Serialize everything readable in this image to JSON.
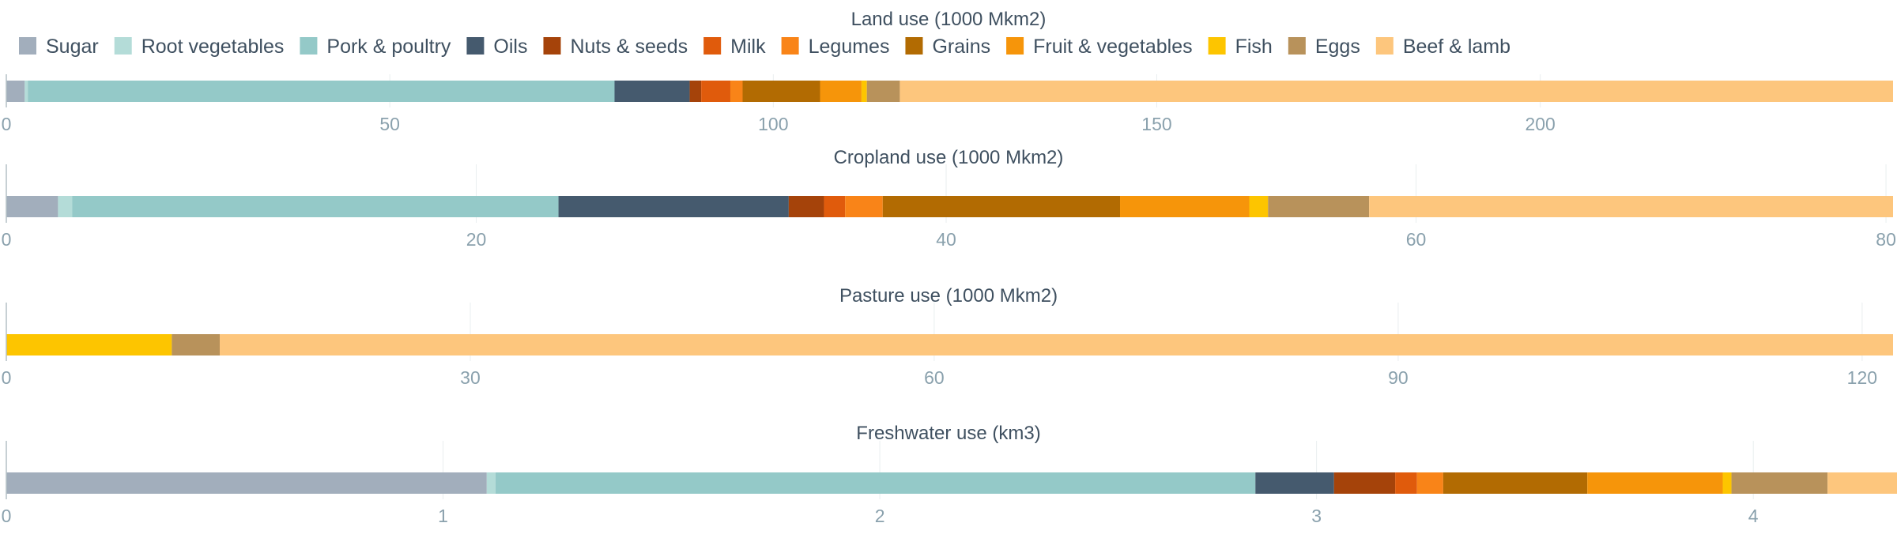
{
  "chart_data": {
    "type": "bar",
    "orientation": "horizontal-stacked",
    "legend_position": "top-left",
    "grid": true,
    "legend": [
      {
        "name": "Sugar",
        "color": "#a2aebc"
      },
      {
        "name": "Root vegetables",
        "color": "#b4dcd8"
      },
      {
        "name": "Pork & poultry",
        "color": "#94c9c8"
      },
      {
        "name": "Oils",
        "color": "#455a6e"
      },
      {
        "name": "Nuts & seeds",
        "color": "#a5430a"
      },
      {
        "name": "Milk",
        "color": "#e05b0c"
      },
      {
        "name": "Legumes",
        "color": "#f98418"
      },
      {
        "name": "Grains",
        "color": "#b26b02"
      },
      {
        "name": "Fruit & vegetables",
        "color": "#f6950a"
      },
      {
        "name": "Fish",
        "color": "#fdc500"
      },
      {
        "name": "Eggs",
        "color": "#b8925b"
      },
      {
        "name": "Beef & lamb",
        "color": "#fdc67d"
      }
    ],
    "panels": [
      {
        "title": "Land use (1000 Mkm2)",
        "xlim": [
          0,
          246
        ],
        "ticks": [
          0,
          50,
          100,
          150,
          200
        ],
        "segments": [
          {
            "name": "Sugar",
            "value": 2.4
          },
          {
            "name": "Root vegetables",
            "value": 0.4
          },
          {
            "name": "Pork & poultry",
            "value": 76.5
          },
          {
            "name": "Oils",
            "value": 9.8
          },
          {
            "name": "Nuts & seeds",
            "value": 1.5
          },
          {
            "name": "Milk",
            "value": 3.8
          },
          {
            "name": "Legumes",
            "value": 1.6
          },
          {
            "name": "Grains",
            "value": 10.1
          },
          {
            "name": "Fruit & vegetables",
            "value": 5.4
          },
          {
            "name": "Fish",
            "value": 0.7
          },
          {
            "name": "Eggs",
            "value": 4.3
          },
          {
            "name": "Beef & lamb",
            "value": 129.5
          }
        ]
      },
      {
        "title": "Cropland use (1000 Mkm2)",
        "xlim": [
          0,
          80.3
        ],
        "ticks": [
          0,
          20,
          40,
          60,
          80
        ],
        "segments": [
          {
            "name": "Sugar",
            "value": 2.2
          },
          {
            "name": "Root vegetables",
            "value": 0.6
          },
          {
            "name": "Pork & poultry",
            "value": 20.7
          },
          {
            "name": "Oils",
            "value": 9.8
          },
          {
            "name": "Nuts & seeds",
            "value": 1.5
          },
          {
            "name": "Milk",
            "value": 0.9
          },
          {
            "name": "Legumes",
            "value": 1.6
          },
          {
            "name": "Grains",
            "value": 10.1
          },
          {
            "name": "Fruit & vegetables",
            "value": 5.5
          },
          {
            "name": "Fish",
            "value": 0.8
          },
          {
            "name": "Eggs",
            "value": 4.3
          },
          {
            "name": "Beef & lamb",
            "value": 22.3
          }
        ]
      },
      {
        "title": "Pasture use (1000 Mkm2)",
        "xlim": [
          0,
          122
        ],
        "ticks": [
          0,
          30,
          60,
          90,
          120
        ],
        "segments": [
          {
            "name": "Fish",
            "value": 10.7
          },
          {
            "name": "Eggs",
            "value": 3.1
          },
          {
            "name": "Beef & lamb",
            "value": 108.2
          }
        ]
      },
      {
        "title": "Freshwater use (km3)",
        "xlim": [
          0,
          4.32
        ],
        "ticks": [
          0,
          1,
          2,
          3,
          4
        ],
        "segments": [
          {
            "name": "Sugar",
            "value": 1.1
          },
          {
            "name": "Root vegetables",
            "value": 0.02
          },
          {
            "name": "Pork & poultry",
            "value": 1.74
          },
          {
            "name": "Oils",
            "value": 0.18
          },
          {
            "name": "Nuts & seeds",
            "value": 0.14
          },
          {
            "name": "Milk",
            "value": 0.05
          },
          {
            "name": "Legumes",
            "value": 0.06
          },
          {
            "name": "Grains",
            "value": 0.33
          },
          {
            "name": "Fruit & vegetables",
            "value": 0.31
          },
          {
            "name": "Fish",
            "value": 0.02
          },
          {
            "name": "Eggs",
            "value": 0.22
          },
          {
            "name": "Beef & lamb",
            "value": 0.16
          }
        ]
      }
    ]
  }
}
